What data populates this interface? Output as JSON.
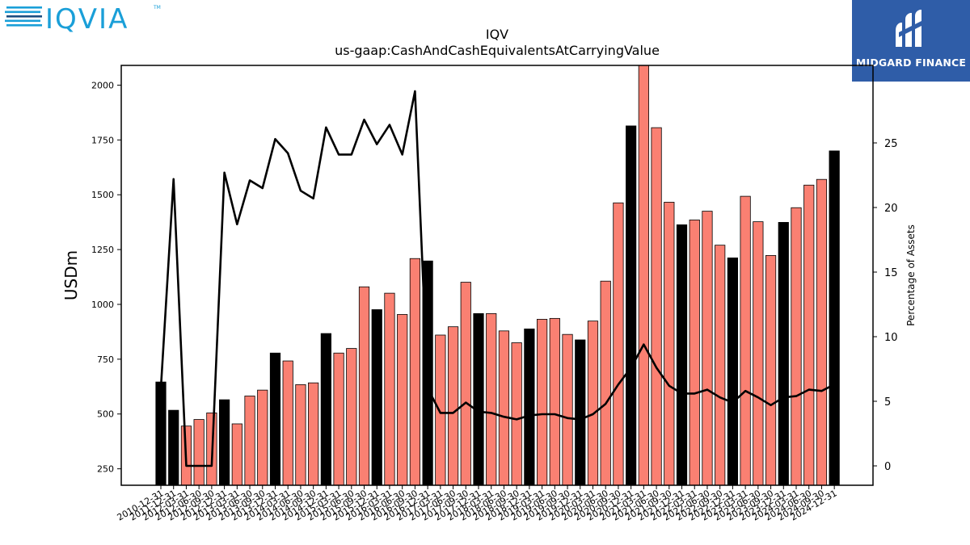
{
  "logos": {
    "iqvia_text": "IQVIA",
    "iqvia_tm": "TM",
    "midgard_text": "MIDGARD FINANCE"
  },
  "colors": {
    "annual_bar": "#000000",
    "quarterly_bar": "#fa8072",
    "line": "#000000",
    "iqvia_blue": "#1a9fd8",
    "iqvia_navy": "#1c4e80",
    "midgard_bg": "#2f5da8"
  },
  "chart_data": {
    "type": "bar",
    "title": "IQV",
    "subtitle": "us-gaap:CashAndCashEquivalentsAtCarryingValue",
    "ylabel": "USDm",
    "y2label": "Percentage of Assets",
    "ylim": [
      175,
      2090
    ],
    "y2lim": [
      -1.5,
      31
    ],
    "yticks": [
      250,
      500,
      750,
      1000,
      1250,
      1500,
      1750,
      2000
    ],
    "y2ticks": [
      0,
      5,
      10,
      15,
      20,
      25
    ],
    "grid": false,
    "categories": [
      "2010-12-31",
      "2011-12-31",
      "2012-03-31",
      "2012-06-30",
      "2012-09-30",
      "2012-12-31",
      "2013-03-31",
      "2013-06-30",
      "2013-09-30",
      "2013-12-31",
      "2014-03-31",
      "2014-06-30",
      "2014-09-30",
      "2014-12-31",
      "2015-03-31",
      "2015-06-30",
      "2015-09-30",
      "2015-12-31",
      "2016-03-31",
      "2016-06-30",
      "2016-09-30",
      "2016-12-31",
      "2017-03-31",
      "2017-06-30",
      "2017-09-30",
      "2017-12-31",
      "2018-03-31",
      "2018-06-30",
      "2018-09-30",
      "2018-12-31",
      "2019-03-31",
      "2019-06-30",
      "2019-09-30",
      "2019-12-31",
      "2020-03-31",
      "2020-06-30",
      "2020-09-30",
      "2020-12-31",
      "2021-03-31",
      "2021-06-30",
      "2021-09-30",
      "2021-12-31",
      "2022-03-31",
      "2022-06-30",
      "2022-09-30",
      "2022-12-31",
      "2023-03-31",
      "2023-06-30",
      "2023-09-30",
      "2023-12-31",
      "2024-03-31",
      "2024-06-30",
      "2024-09-30",
      "2024-12-31"
    ],
    "tick_labels": [
      "2010-12-31",
      "2011-12-31",
      "2012-03-31",
      "2012-06-30",
      "2012-09-30",
      "2012-12-31",
      "2013-03-31",
      "2013-06-30",
      "2013-09-30",
      "2013-12-31",
      "2014-03-31",
      "2014-06-30",
      "2014-09-30",
      "2014-12-31",
      "2015-03-31",
      "2015-06-30",
      "2015-09-30",
      "2015-12-31",
      "2016-03-31",
      "2016-06-30",
      "2016-09-30",
      "2016-12-31",
      "2017-03-31",
      "2017-06-30",
      "2017-09-30",
      "2017-12-31",
      "2018-03-31",
      "2018-06-30",
      "2018-09-30",
      "2018-12-31",
      "2019-03-31",
      "2019-06-30",
      "2019-09-30",
      "2019-12-31",
      "2020-03-31",
      "2020-06-30",
      "2020-09-30",
      "2020-12-31",
      "2021-03-31",
      "2021-06-30",
      "2021-09-30",
      "2021-12-31",
      "2022-03-31",
      "2022-06-30",
      "2022-09-30",
      "2022-12-31",
      "2023-03-31",
      "2023-06-30",
      "2023-09-30",
      "2023-12-31",
      "2024-03-31",
      "2024-06-30",
      "2024-09-30",
      "2024-12-31"
    ],
    "annual": [
      true,
      true,
      false,
      false,
      false,
      true,
      false,
      false,
      false,
      true,
      false,
      false,
      false,
      true,
      false,
      false,
      false,
      true,
      false,
      false,
      false,
      true,
      false,
      false,
      false,
      true,
      false,
      false,
      false,
      true,
      false,
      false,
      false,
      true,
      false,
      false,
      false,
      true,
      false,
      false,
      false,
      true,
      false,
      false,
      false,
      true,
      false,
      false,
      false,
      true,
      false,
      false,
      false,
      true
    ],
    "values": [
      646,
      517,
      445,
      475,
      505,
      565,
      455,
      582,
      609,
      778,
      742,
      634,
      642,
      867,
      778,
      799,
      1080,
      976,
      1051,
      954,
      1209,
      1198,
      860,
      898,
      1101,
      958,
      958,
      879,
      825,
      888,
      932,
      936,
      863,
      838,
      924,
      1106,
      1463,
      1814,
      2140,
      1806,
      1466,
      1363,
      1385,
      1425,
      1270,
      1212,
      1493,
      1377,
      1223,
      1374,
      1441,
      1544,
      1570,
      1700
    ],
    "pct_assets": [
      6.0,
      22.2,
      0.0,
      0.0,
      0.0,
      22.7,
      18.7,
      22.1,
      21.5,
      25.3,
      24.2,
      21.3,
      20.7,
      26.2,
      24.1,
      24.1,
      26.8,
      24.9,
      26.4,
      24.1,
      29.0,
      6.0,
      4.1,
      4.1,
      4.9,
      4.2,
      4.1,
      3.8,
      3.6,
      3.9,
      4.0,
      4.0,
      3.7,
      3.6,
      4.0,
      4.8,
      6.3,
      7.6,
      9.4,
      7.6,
      6.2,
      5.6,
      5.6,
      5.9,
      5.3,
      4.9,
      5.8,
      5.3,
      4.7,
      5.3,
      5.4,
      5.9,
      5.8,
      6.3
    ]
  }
}
